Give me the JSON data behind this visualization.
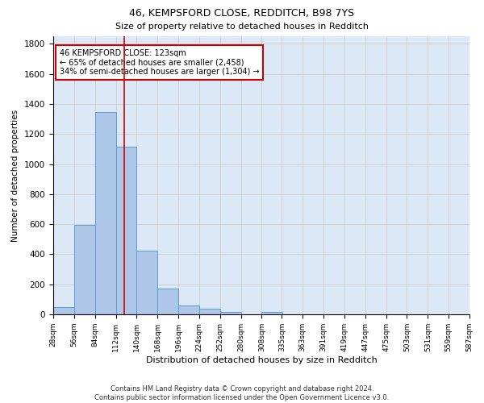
{
  "title1": "46, KEMPSFORD CLOSE, REDDITCH, B98 7YS",
  "title2": "Size of property relative to detached houses in Redditch",
  "xlabel": "Distribution of detached houses by size in Redditch",
  "ylabel": "Number of detached properties",
  "footnote": "Contains HM Land Registry data © Crown copyright and database right 2024.\nContains public sector information licensed under the Open Government Licence v3.0.",
  "bin_edges": [
    28,
    56,
    84,
    112,
    140,
    168,
    196,
    224,
    252,
    280,
    308,
    335,
    363,
    391,
    419,
    447,
    475,
    503,
    531,
    559,
    587
  ],
  "bar_heights": [
    50,
    595,
    1348,
    1115,
    425,
    170,
    60,
    38,
    14,
    0,
    14,
    0,
    0,
    0,
    0,
    0,
    0,
    0,
    0,
    0
  ],
  "bar_color": "#aec6e8",
  "bar_edge_color": "#5b9bd5",
  "vline_x": 123,
  "vline_color": "#cc0000",
  "annotation_text": "46 KEMPSFORD CLOSE: 123sqm\n← 65% of detached houses are smaller (2,458)\n34% of semi-detached houses are larger (1,304) →",
  "annotation_box_color": "#cc0000",
  "annotation_box_fill": "#ffffff",
  "ylim": [
    0,
    1850
  ],
  "xlim": [
    28,
    587
  ],
  "tick_labels": [
    "28sqm",
    "56sqm",
    "84sqm",
    "112sqm",
    "140sqm",
    "168sqm",
    "196sqm",
    "224sqm",
    "252sqm",
    "280sqm",
    "308sqm",
    "335sqm",
    "363sqm",
    "391sqm",
    "419sqm",
    "447sqm",
    "475sqm",
    "503sqm",
    "531sqm",
    "559sqm",
    "587sqm"
  ],
  "grid_color": "#cccccc",
  "bg_color": "#dce8f5",
  "fig_bg_color": "#ffffff",
  "title1_fontsize": 9,
  "title2_fontsize": 8,
  "xlabel_fontsize": 8,
  "ylabel_fontsize": 7.5,
  "tick_fontsize": 6.5,
  "ytick_fontsize": 7.5,
  "annot_fontsize": 7,
  "footnote_fontsize": 6
}
